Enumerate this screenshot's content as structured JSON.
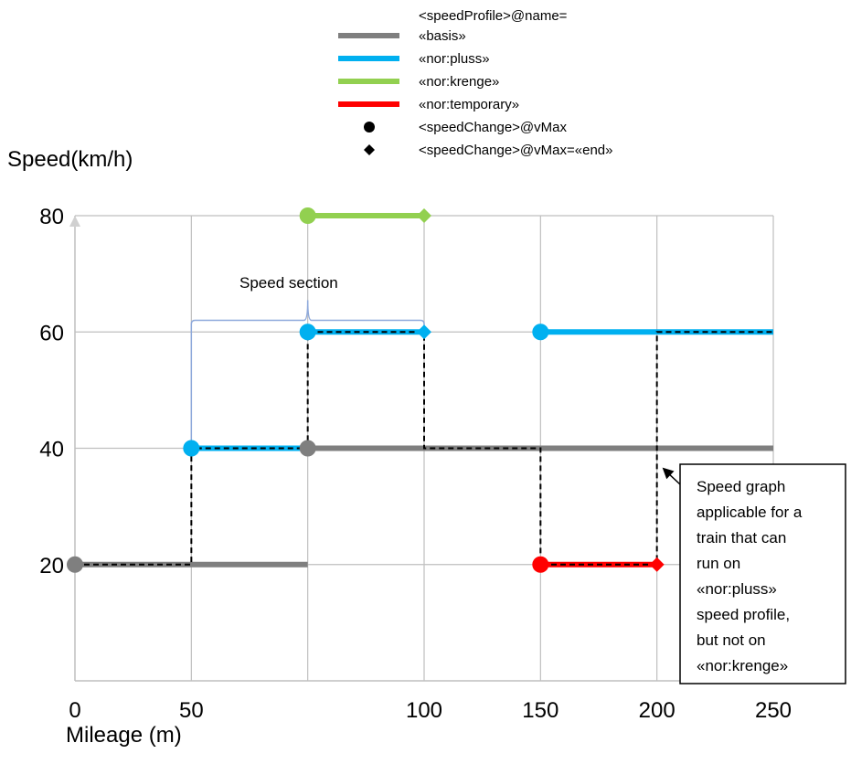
{
  "chart_data": {
    "type": "line",
    "ylabel": "Speed(km/h)",
    "xlabel": "Mileage (m)",
    "xlim": [
      0,
      300
    ],
    "ylim": [
      0,
      80
    ],
    "x_tick_labels": [
      "0",
      "50",
      "100",
      "150",
      "200",
      "250"
    ],
    "y_tick_labels": [
      "20",
      "40",
      "60",
      "80"
    ],
    "grid": true,
    "legend": {
      "position": "top",
      "header": "<speedProfile>@name=",
      "series_entries": [
        {
          "label": "«basis»",
          "color": "#7f7f7f"
        },
        {
          "label": "«nor:pluss»",
          "color": "#00b0f0"
        },
        {
          "label": "«nor:krenge»",
          "color": "#92d050"
        },
        {
          "label": "«nor:temporary»",
          "color": "#ff0000"
        }
      ],
      "marker_entries": [
        {
          "label": "<speedChange>@vMax",
          "marker": "circle"
        },
        {
          "label": "<speedChange>@vMax=«end»",
          "marker": "diamond"
        }
      ]
    },
    "series": [
      {
        "name": "«basis»",
        "color": "#7f7f7f",
        "segments": [
          {
            "x": [
              0,
              100
            ],
            "y": 20,
            "start_marker": "circle",
            "end_marker": "none"
          },
          {
            "x": [
              100,
              300
            ],
            "y": 40,
            "start_marker": "circle",
            "end_marker": "none"
          }
        ]
      },
      {
        "name": "«nor:pluss»",
        "color": "#00b0f0",
        "segments": [
          {
            "x": [
              50,
              100
            ],
            "y": 40,
            "start_marker": "circle",
            "end_marker": "none"
          },
          {
            "x": [
              100,
              150
            ],
            "y": 60,
            "start_marker": "circle",
            "end_marker": "diamond"
          },
          {
            "x": [
              200,
              300
            ],
            "y": 60,
            "start_marker": "circle",
            "end_marker": "none"
          }
        ]
      },
      {
        "name": "«nor:krenge»",
        "color": "#92d050",
        "segments": [
          {
            "x": [
              100,
              150
            ],
            "y": 80,
            "start_marker": "circle",
            "end_marker": "diamond"
          }
        ]
      },
      {
        "name": "«nor:temporary»",
        "color": "#ff0000",
        "segments": [
          {
            "x": [
              200,
              250
            ],
            "y": 20,
            "start_marker": "circle",
            "end_marker": "diamond"
          }
        ]
      }
    ],
    "speed_graph": {
      "style": "dashed",
      "color": "#000000",
      "points": [
        [
          0,
          20
        ],
        [
          50,
          20
        ],
        [
          50,
          40
        ],
        [
          100,
          40
        ],
        [
          100,
          60
        ],
        [
          150,
          60
        ],
        [
          150,
          40
        ],
        [
          200,
          40
        ],
        [
          200,
          20
        ],
        [
          250,
          20
        ],
        [
          250,
          60
        ],
        [
          300,
          60
        ]
      ]
    },
    "annotations": {
      "speed_section": {
        "text": "Speed section",
        "x_range": [
          50,
          150
        ],
        "y": 62
      },
      "callout": {
        "lines": [
          "Speed graph",
          "applicable for a",
          "train that can",
          "run on",
          "«nor:pluss»",
          "speed profile,",
          "but not on",
          "«nor:krenge»"
        ],
        "arrow_to": [
          250,
          37
        ]
      }
    }
  }
}
